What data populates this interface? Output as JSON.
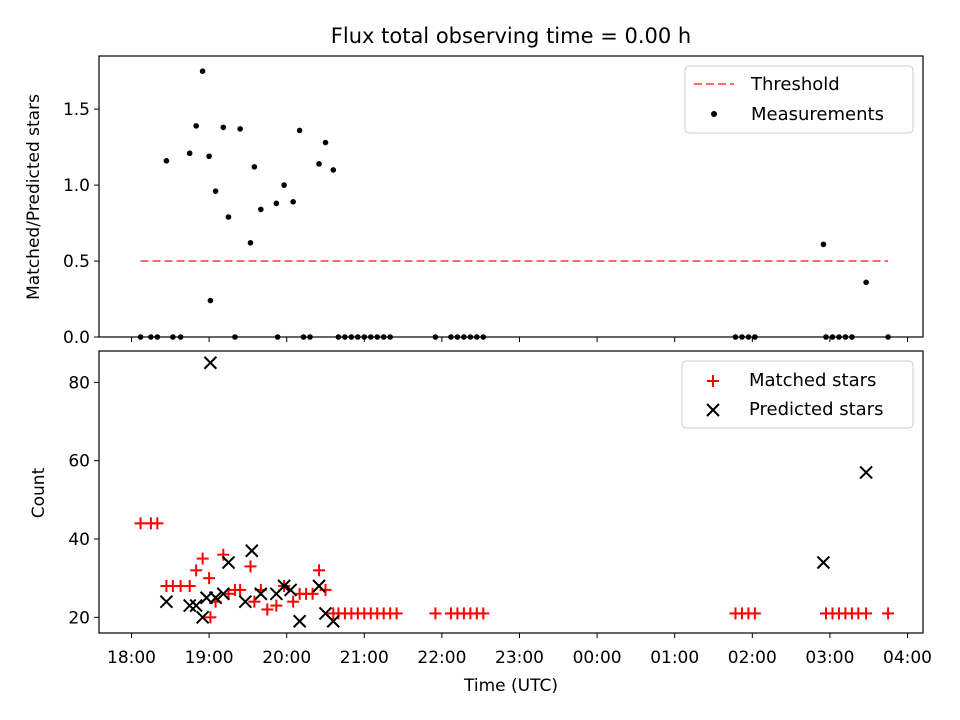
{
  "chart_data": [
    {
      "type": "scatter",
      "title": "Flux total observing time = 0.00 h",
      "xlabel": "",
      "ylabel": "Matched/Predicted stars",
      "ylim": [
        0,
        1.85
      ],
      "xlim_hours": [
        17.7,
        28.35
      ],
      "yticks": [
        0.0,
        0.5,
        1.0,
        1.5
      ],
      "ytick_labels": [
        "0.0",
        "0.5",
        "1.0",
        "1.5"
      ],
      "legend_position": "top-right",
      "threshold": {
        "name": "Threshold",
        "value": 0.5,
        "x_range": [
          "18:07",
          "03:45"
        ],
        "color": "#ff6b6b"
      },
      "series": [
        {
          "name": "Measurements",
          "color": "#000000",
          "points": [
            [
              "18:07",
              0
            ],
            [
              "18:15",
              0
            ],
            [
              "18:20",
              0
            ],
            [
              "18:27",
              1.16
            ],
            [
              "18:32",
              0
            ],
            [
              "18:38",
              0
            ],
            [
              "18:45",
              1.21
            ],
            [
              "18:50",
              1.39
            ],
            [
              "18:55",
              1.75
            ],
            [
              "19:00",
              1.19
            ],
            [
              "19:01",
              0.24
            ],
            [
              "19:05",
              0.96
            ],
            [
              "19:11",
              1.38
            ],
            [
              "19:15",
              0.79
            ],
            [
              "19:20",
              0
            ],
            [
              "19:24",
              1.37
            ],
            [
              "19:32",
              0.62
            ],
            [
              "19:35",
              1.12
            ],
            [
              "19:40",
              0.84
            ],
            [
              "19:52",
              0.88
            ],
            [
              "19:53",
              0
            ],
            [
              "19:58",
              1.0
            ],
            [
              "20:05",
              0.89
            ],
            [
              "20:10",
              1.36
            ],
            [
              "20:13",
              0
            ],
            [
              "20:18",
              0
            ],
            [
              "20:25",
              1.14
            ],
            [
              "20:30",
              1.28
            ],
            [
              "20:36",
              1.1
            ],
            [
              "20:40",
              0
            ],
            [
              "20:45",
              0
            ],
            [
              "20:50",
              0
            ],
            [
              "20:55",
              0
            ],
            [
              "21:00",
              0
            ],
            [
              "21:05",
              0
            ],
            [
              "21:10",
              0
            ],
            [
              "21:15",
              0
            ],
            [
              "21:20",
              0
            ],
            [
              "21:55",
              0
            ],
            [
              "22:07",
              0
            ],
            [
              "22:12",
              0
            ],
            [
              "22:17",
              0
            ],
            [
              "22:22",
              0
            ],
            [
              "22:27",
              0
            ],
            [
              "22:32",
              0
            ],
            [
              "01:47",
              0
            ],
            [
              "01:52",
              0
            ],
            [
              "01:57",
              0
            ],
            [
              "02:02",
              0
            ],
            [
              "02:55",
              0.61
            ],
            [
              "02:57",
              0
            ],
            [
              "03:02",
              0
            ],
            [
              "03:07",
              0
            ],
            [
              "03:12",
              0
            ],
            [
              "03:17",
              0
            ],
            [
              "03:28",
              0.36
            ],
            [
              "03:45",
              0
            ]
          ]
        }
      ]
    },
    {
      "type": "scatter",
      "title": "",
      "xlabel": "Time (UTC)",
      "ylabel": "Count",
      "ylim": [
        16,
        88
      ],
      "xlim_hours": [
        17.7,
        28.35
      ],
      "yticks": [
        20,
        40,
        60,
        80
      ],
      "ytick_labels": [
        "20",
        "40",
        "60",
        "80"
      ],
      "xticks": [
        "18:00",
        "19:00",
        "20:00",
        "21:00",
        "22:00",
        "23:00",
        "00:00",
        "01:00",
        "02:00",
        "03:00",
        "04:00"
      ],
      "legend_position": "top-right",
      "series": [
        {
          "name": "Matched stars",
          "color": "#ff0000",
          "marker": "+",
          "points": [
            [
              "18:07",
              44
            ],
            [
              "18:15",
              44
            ],
            [
              "18:20",
              44
            ],
            [
              "18:27",
              28
            ],
            [
              "18:32",
              28
            ],
            [
              "18:38",
              28
            ],
            [
              "18:45",
              28
            ],
            [
              "18:50",
              32
            ],
            [
              "18:55",
              35
            ],
            [
              "19:00",
              30
            ],
            [
              "19:01",
              20
            ],
            [
              "19:05",
              24
            ],
            [
              "19:11",
              36
            ],
            [
              "19:15",
              26
            ],
            [
              "19:20",
              27
            ],
            [
              "19:24",
              27
            ],
            [
              "19:32",
              33
            ],
            [
              "19:35",
              24
            ],
            [
              "19:40",
              27
            ],
            [
              "19:45",
              22
            ],
            [
              "19:52",
              23
            ],
            [
              "19:58",
              28
            ],
            [
              "20:05",
              24
            ],
            [
              "20:10",
              26
            ],
            [
              "20:15",
              26
            ],
            [
              "20:20",
              26
            ],
            [
              "20:25",
              32
            ],
            [
              "20:30",
              27
            ],
            [
              "20:36",
              21
            ],
            [
              "20:40",
              21
            ],
            [
              "20:45",
              21
            ],
            [
              "20:50",
              21
            ],
            [
              "20:55",
              21
            ],
            [
              "21:00",
              21
            ],
            [
              "21:05",
              21
            ],
            [
              "21:10",
              21
            ],
            [
              "21:15",
              21
            ],
            [
              "21:20",
              21
            ],
            [
              "21:25",
              21
            ],
            [
              "21:55",
              21
            ],
            [
              "22:07",
              21
            ],
            [
              "22:12",
              21
            ],
            [
              "22:17",
              21
            ],
            [
              "22:22",
              21
            ],
            [
              "22:27",
              21
            ],
            [
              "22:32",
              21
            ],
            [
              "01:47",
              21
            ],
            [
              "01:52",
              21
            ],
            [
              "01:57",
              21
            ],
            [
              "02:02",
              21
            ],
            [
              "02:57",
              21
            ],
            [
              "03:02",
              21
            ],
            [
              "03:07",
              21
            ],
            [
              "03:12",
              21
            ],
            [
              "03:17",
              21
            ],
            [
              "03:22",
              21
            ],
            [
              "03:28",
              21
            ],
            [
              "03:45",
              21
            ]
          ]
        },
        {
          "name": "Predicted stars",
          "color": "#000000",
          "marker": "x",
          "points": [
            [
              "18:27",
              24
            ],
            [
              "18:45",
              23
            ],
            [
              "18:50",
              23
            ],
            [
              "18:55",
              20
            ],
            [
              "18:58",
              25
            ],
            [
              "19:01",
              85
            ],
            [
              "19:05",
              25
            ],
            [
              "19:11",
              26
            ],
            [
              "19:15",
              34
            ],
            [
              "19:28",
              24
            ],
            [
              "19:33",
              37
            ],
            [
              "19:40",
              26
            ],
            [
              "19:52",
              26
            ],
            [
              "19:58",
              28
            ],
            [
              "20:03",
              27
            ],
            [
              "20:10",
              19
            ],
            [
              "20:25",
              28
            ],
            [
              "20:30",
              21
            ],
            [
              "20:36",
              19
            ],
            [
              "02:55",
              34
            ],
            [
              "03:28",
              57
            ]
          ]
        }
      ]
    }
  ]
}
